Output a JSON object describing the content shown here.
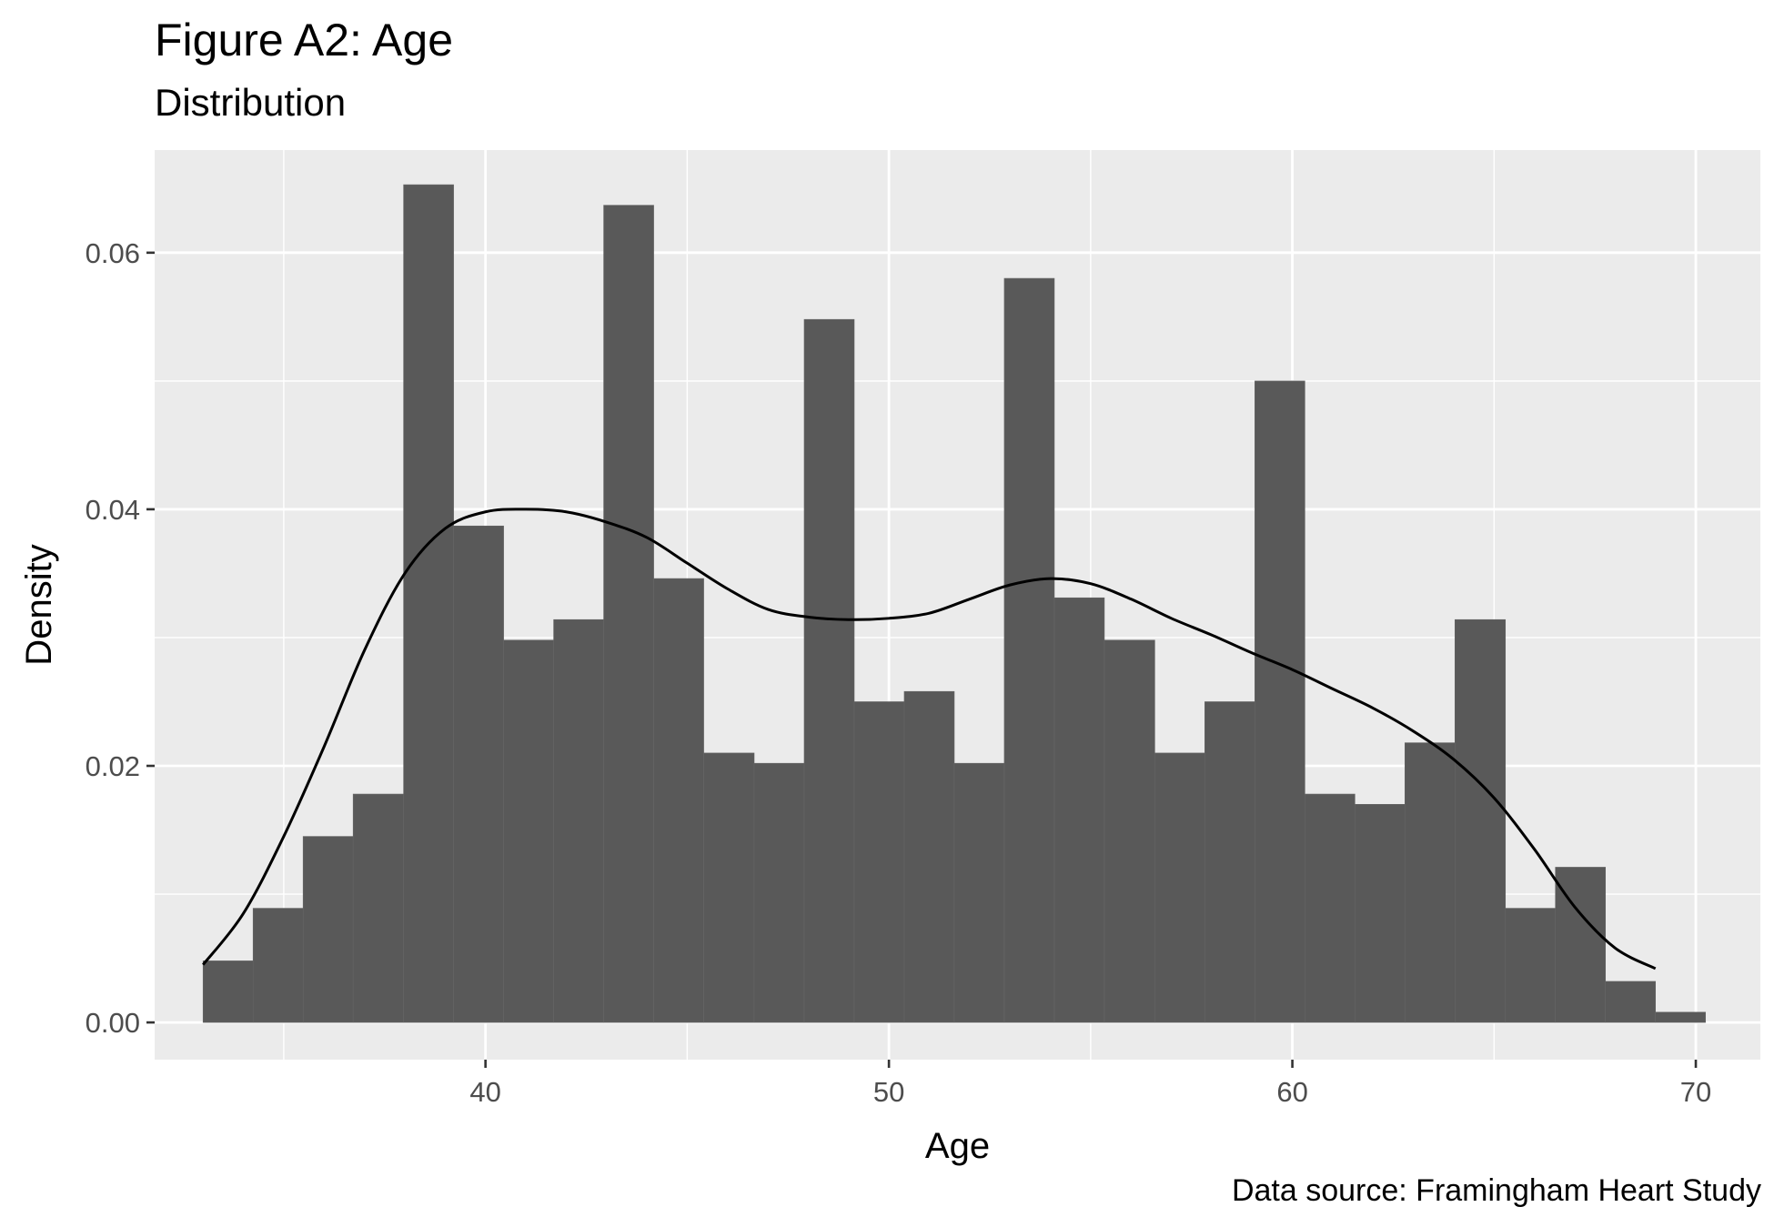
{
  "title": "Figure A2: Age",
  "subtitle": "Distribution",
  "caption": "Data source: Framingham Heart Study",
  "chart_data": {
    "type": "bar",
    "title": "Figure A2: Age",
    "subtitle": "Distribution",
    "xlabel": "Age",
    "ylabel": "Density",
    "xlim": [
      31.8,
      71.6
    ],
    "ylim": [
      -0.0029,
      0.068
    ],
    "x_ticks": [
      40,
      50,
      60,
      70
    ],
    "y_ticks": [
      0.0,
      0.02,
      0.04,
      0.06
    ],
    "y_tick_labels": [
      "0.00",
      "0.02",
      "0.04",
      "0.06"
    ],
    "grid": true,
    "bin_width": 1.2414,
    "bins": [
      {
        "x_start": 33.0,
        "x_end": 34.24,
        "density": 0.0048
      },
      {
        "x_start": 34.24,
        "x_end": 35.48,
        "density": 0.0089
      },
      {
        "x_start": 35.48,
        "x_end": 36.72,
        "density": 0.0145
      },
      {
        "x_start": 36.72,
        "x_end": 37.97,
        "density": 0.0178
      },
      {
        "x_start": 37.97,
        "x_end": 39.21,
        "density": 0.0653
      },
      {
        "x_start": 39.21,
        "x_end": 40.45,
        "density": 0.0387
      },
      {
        "x_start": 40.45,
        "x_end": 41.69,
        "density": 0.0298
      },
      {
        "x_start": 41.69,
        "x_end": 42.93,
        "density": 0.0314
      },
      {
        "x_start": 42.93,
        "x_end": 44.17,
        "density": 0.0637
      },
      {
        "x_start": 44.17,
        "x_end": 45.41,
        "density": 0.0346
      },
      {
        "x_start": 45.41,
        "x_end": 46.66,
        "density": 0.021
      },
      {
        "x_start": 46.66,
        "x_end": 47.9,
        "density": 0.0202
      },
      {
        "x_start": 47.9,
        "x_end": 49.14,
        "density": 0.0548
      },
      {
        "x_start": 49.14,
        "x_end": 50.38,
        "density": 0.025
      },
      {
        "x_start": 50.38,
        "x_end": 51.62,
        "density": 0.0258
      },
      {
        "x_start": 51.62,
        "x_end": 52.86,
        "density": 0.0202
      },
      {
        "x_start": 52.86,
        "x_end": 54.1,
        "density": 0.058
      },
      {
        "x_start": 54.1,
        "x_end": 55.34,
        "density": 0.0331
      },
      {
        "x_start": 55.34,
        "x_end": 56.59,
        "density": 0.0298
      },
      {
        "x_start": 56.59,
        "x_end": 57.83,
        "density": 0.021
      },
      {
        "x_start": 57.83,
        "x_end": 59.07,
        "density": 0.025
      },
      {
        "x_start": 59.07,
        "x_end": 60.31,
        "density": 0.05
      },
      {
        "x_start": 60.31,
        "x_end": 61.55,
        "density": 0.0178
      },
      {
        "x_start": 61.55,
        "x_end": 62.79,
        "density": 0.017
      },
      {
        "x_start": 62.79,
        "x_end": 64.03,
        "density": 0.0218
      },
      {
        "x_start": 64.03,
        "x_end": 65.28,
        "density": 0.0314
      },
      {
        "x_start": 65.28,
        "x_end": 66.52,
        "density": 0.0089
      },
      {
        "x_start": 66.52,
        "x_end": 67.76,
        "density": 0.0121
      },
      {
        "x_start": 67.76,
        "x_end": 69.0,
        "density": 0.0032
      },
      {
        "x_start": 69.0,
        "x_end": 70.24,
        "density": 0.0008
      }
    ],
    "density_curve": {
      "x": [
        33.0,
        34.0,
        35.0,
        36.0,
        37.0,
        38.0,
        39.0,
        40.0,
        41.0,
        42.0,
        43.0,
        44.0,
        45.0,
        46.0,
        47.0,
        48.0,
        49.0,
        50.0,
        51.0,
        52.0,
        53.0,
        54.0,
        55.0,
        56.0,
        57.0,
        58.0,
        59.0,
        60.0,
        61.0,
        62.0,
        63.0,
        64.0,
        65.0,
        66.0,
        67.0,
        68.0,
        69.0
      ],
      "y": [
        0.0045,
        0.0085,
        0.0145,
        0.0215,
        0.029,
        0.035,
        0.0385,
        0.0398,
        0.04,
        0.0398,
        0.039,
        0.0378,
        0.0358,
        0.0338,
        0.0322,
        0.0316,
        0.0314,
        0.0315,
        0.0319,
        0.033,
        0.0341,
        0.0346,
        0.0342,
        0.033,
        0.0315,
        0.0302,
        0.0288,
        0.0275,
        0.026,
        0.0245,
        0.0227,
        0.0205,
        0.0175,
        0.0135,
        0.009,
        0.0058,
        0.0042
      ]
    },
    "colors": {
      "panel_bg": "#EBEBEB",
      "grid": "#FFFFFF",
      "bar_fill": "#595959",
      "curve": "#000000",
      "tick_text": "#4D4D4D"
    }
  }
}
